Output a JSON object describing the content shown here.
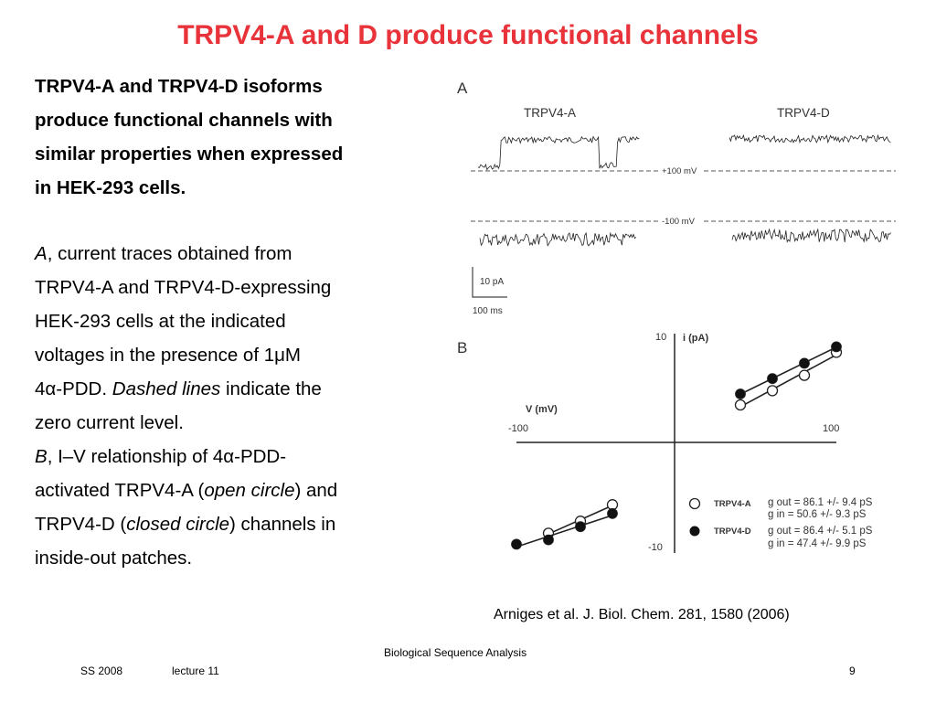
{
  "slide": {
    "title": "TRPV4-A and D produce functional channels",
    "summary_lines": [
      "TRPV4-A and TRPV4-D isoforms",
      "produce functional channels with",
      "similar properties when expressed",
      "in HEK-293 cells."
    ],
    "caption": {
      "a_label": "A",
      "a_line1_rest": ", current traces obtained from",
      "a_line2": "TRPV4-A and TRPV4-D-expressing",
      "a_line3": "HEK-293 cells at the indicated",
      "a_line4": "voltages in the presence of 1μM",
      "a_line5_start": "4α-PDD. ",
      "a_line5_italic": "Dashed lines",
      "a_line5_end": " indicate the",
      "a_line6": "zero current level.",
      "b_label": "B",
      "b_line1_rest": ", I–V relationship of 4α-PDD-",
      "b_line2_start": "activated TRPV4-A (",
      "b_line2_italic": "open circle",
      "b_line2_end": ") and",
      "b_line3_start": "TRPV4-D (",
      "b_line3_italic": "closed circle",
      "b_line3_end": ") channels in",
      "b_line4": "inside-out patches."
    },
    "citation": "Arniges et al. J. Biol. Chem. 281, 1580 (2006)",
    "footer": {
      "course": "Biological Sequence Analysis",
      "term": "SS 2008",
      "lecture": "lecture 11",
      "page": "9"
    }
  },
  "figure": {
    "panel_a": {
      "label": "A",
      "trace_a_title": "TRPV4-A",
      "trace_d_title": "TRPV4-D",
      "v_pos": "+100 mV",
      "v_neg": "-100 mV",
      "scale_current": "10 pA",
      "scale_time": "100 ms"
    },
    "panel_b": {
      "label": "B",
      "y_axis_label": "i (pA)",
      "x_axis_label": "V (mV)",
      "y_max_label": "10",
      "y_min_label": "-10",
      "x_min_label": "-100",
      "x_max_label": "100",
      "legend": [
        {
          "name": "TRPV4-A",
          "fit_out": "g out = 86.1 +/- 9.4 pS",
          "fit_in": "g in = 50.6 +/- 9.3 pS",
          "marker": "open"
        },
        {
          "name": "TRPV4-D",
          "fit_out": "g out = 86.4 +/- 5.1 pS",
          "fit_in": "g in = 47.4 +/- 9.9 pS",
          "marker": "closed"
        }
      ]
    }
  },
  "chart_data": {
    "type": "scatter",
    "title": "",
    "xlabel": "V (mV)",
    "ylabel": "i (pA)",
    "xlim": [
      -100,
      100
    ],
    "ylim": [
      -10,
      10
    ],
    "series": [
      {
        "name": "TRPV4-A",
        "marker": "open",
        "x": [
          -80,
          -60,
          -40,
          40,
          60,
          80,
          100
        ],
        "y": [
          -8.2,
          -7.1,
          -5.6,
          3.5,
          4.8,
          6.2,
          8.3
        ]
      },
      {
        "name": "TRPV4-D",
        "marker": "closed",
        "x": [
          -100,
          -80,
          -60,
          -40,
          40,
          60,
          80,
          100
        ],
        "y": [
          -9.2,
          -8.8,
          -7.6,
          -6.4,
          4.5,
          5.9,
          7.3,
          8.8
        ]
      }
    ]
  }
}
